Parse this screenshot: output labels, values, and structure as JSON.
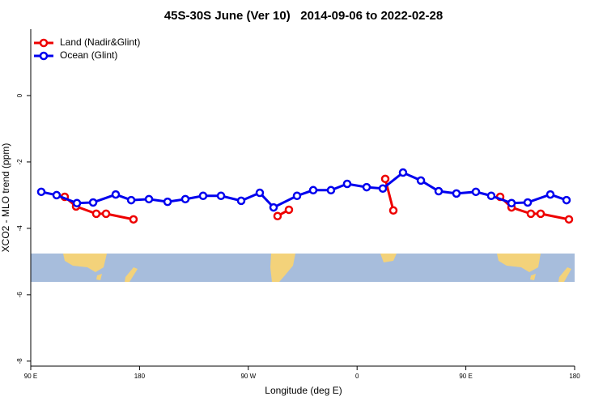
{
  "chart_data": {
    "type": "line",
    "title": "45S-30S June (Ver 10)   2014-09-06 to 2022-02-28",
    "xlabel": "Longitude (deg E)",
    "ylabel": "XCO2 - MLO trend (ppm)",
    "xlim": [
      90,
      540
    ],
    "ylim": [
      -8.15,
      2.0
    ],
    "xticks": [
      {
        "value": 90,
        "label": "90 E"
      },
      180,
      {
        "value": 270,
        "label": "90 W"
      },
      {
        "value": 360,
        "label": "0"
      },
      {
        "value": 450,
        "label": "90 E"
      },
      {
        "value": 540,
        "label": "180"
      }
    ],
    "yticks": [
      -8,
      -6,
      -4,
      -2,
      0
    ],
    "legend": "top-left",
    "series": [
      {
        "name": "Land (Nadir&Glint)",
        "color": "#ee0000",
        "x": [
          118.1,
          127.5,
          144.2,
          152.3,
          175.0,
          null,
          294.2,
          303.6,
          null,
          383.3,
          390.0,
          null,
          478.4,
          487.8,
          503.8,
          511.9,
          535.3
        ],
        "values": [
          -3.05,
          -3.34,
          -3.56,
          -3.56,
          -3.73,
          null,
          -3.63,
          -3.44,
          null,
          -2.51,
          -3.46,
          null,
          -3.05,
          -3.37,
          -3.56,
          -3.56,
          -3.73
        ]
      },
      {
        "name": "Ocean (Glint)",
        "color": "#0000ee",
        "x": [
          98.7,
          111.4,
          128.2,
          141.6,
          160.3,
          173.1,
          187.8,
          203.2,
          217.9,
          232.6,
          247.4,
          264.1,
          279.5,
          290.9,
          310.3,
          323.7,
          338.4,
          351.8,
          367.9,
          381.3,
          398.0,
          412.8,
          427.5,
          442.2,
          458.3,
          471.0,
          487.8,
          501.2,
          519.9,
          533.3
        ],
        "values": [
          -2.9,
          -3.0,
          -3.24,
          -3.22,
          -2.98,
          -3.15,
          -3.12,
          -3.2,
          -3.12,
          -3.02,
          -3.02,
          -3.17,
          -2.93,
          -3.37,
          -3.02,
          -2.85,
          -2.85,
          -2.66,
          -2.76,
          -2.8,
          -2.32,
          -2.56,
          -2.88,
          -2.95,
          -2.9,
          -3.02,
          -3.24,
          -3.22,
          -2.98,
          -3.15
        ]
      }
    ]
  }
}
